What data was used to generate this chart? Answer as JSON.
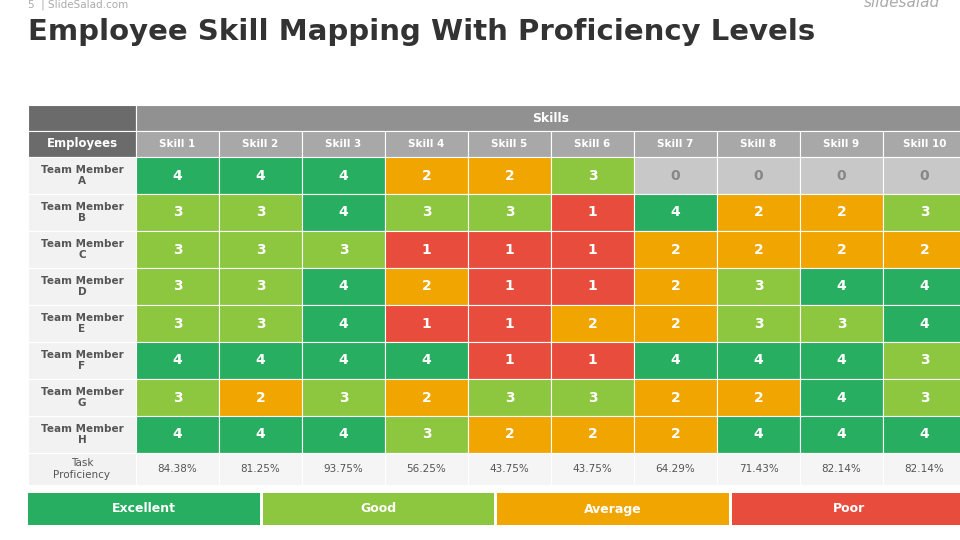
{
  "title": "Employee Skill Mapping With Proficiency Levels",
  "skills": [
    "Skill 1",
    "Skill 2",
    "Skill 3",
    "Skill 4",
    "Skill 5",
    "Skill 6",
    "Skill 7",
    "Skill 8",
    "Skill 9",
    "Skill 10"
  ],
  "employees": [
    "Team Member\nA",
    "Team Member\nB",
    "Team Member\nC",
    "Team Member\nD",
    "Team Member\nE",
    "Team Member\nF",
    "Team Member\nG",
    "Team Member\nH"
  ],
  "values": [
    [
      4,
      4,
      4,
      2,
      2,
      3,
      0,
      0,
      0,
      0
    ],
    [
      3,
      3,
      4,
      3,
      3,
      1,
      4,
      2,
      2,
      3
    ],
    [
      3,
      3,
      3,
      1,
      1,
      1,
      2,
      2,
      2,
      2
    ],
    [
      3,
      3,
      4,
      2,
      1,
      1,
      2,
      3,
      4,
      4
    ],
    [
      3,
      3,
      4,
      1,
      1,
      2,
      2,
      3,
      3,
      4
    ],
    [
      4,
      4,
      4,
      4,
      1,
      1,
      4,
      4,
      4,
      3
    ],
    [
      3,
      2,
      3,
      2,
      3,
      3,
      2,
      2,
      4,
      3
    ],
    [
      4,
      4,
      4,
      3,
      2,
      2,
      2,
      4,
      4,
      4
    ]
  ],
  "task_proficiency": [
    "84.38%",
    "81.25%",
    "93.75%",
    "56.25%",
    "43.75%",
    "43.75%",
    "64.29%",
    "71.43%",
    "82.14%",
    "82.14%"
  ],
  "color_map": {
    "0": "#c8c8c8",
    "1": "#e84c3d",
    "2": "#f0a500",
    "3": "#8dc63f",
    "4": "#27ae60"
  },
  "legend_items": [
    {
      "label": "Excellent",
      "color": "#27ae60"
    },
    {
      "label": "Good",
      "color": "#8dc63f"
    },
    {
      "label": "Average",
      "color": "#f0a500"
    },
    {
      "label": "Poor",
      "color": "#e84c3d"
    }
  ],
  "dark_header_bg": "#6b6b6b",
  "mid_header_bg": "#919191",
  "skill_subheader_bg": "#a8a8a8",
  "employee_cell_bg": "#f2f2f2",
  "prof_cell_bg": "#f5f5f5",
  "white": "#ffffff",
  "footer_color": "#aaaaaa",
  "title_color": "#333333",
  "emp_text_color": "#555555",
  "prof_text_color": "#555555"
}
